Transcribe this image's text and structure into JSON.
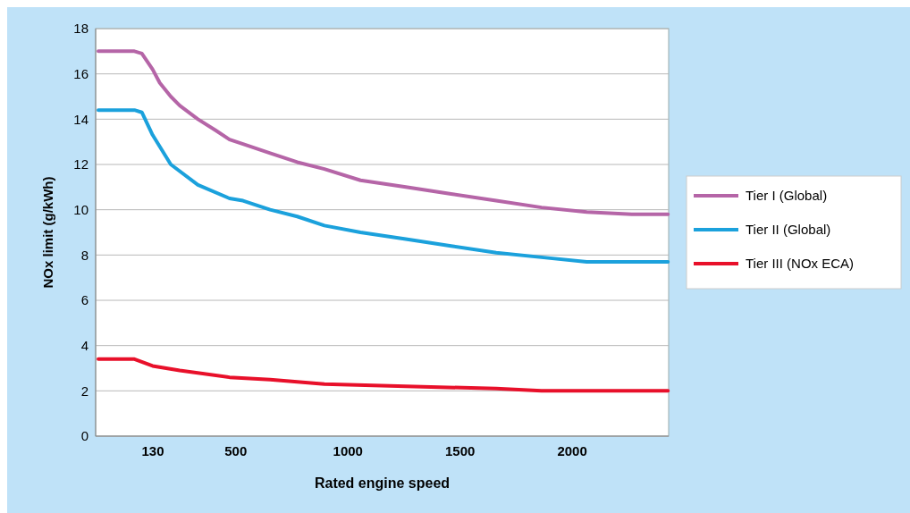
{
  "chart_data": {
    "type": "line",
    "xlabel": "Rated engine speed",
    "ylabel": "NOx limit (g/kWh)",
    "xlim": [
      -125,
      2430
    ],
    "xticks": [
      130,
      500,
      1000,
      1500,
      2000
    ],
    "ylim": [
      0,
      18
    ],
    "yticks": [
      0,
      2,
      4,
      6,
      8,
      10,
      12,
      14,
      16,
      18
    ],
    "grid": "y",
    "legend": "right",
    "marker": "none",
    "line_style": "solid",
    "series": [
      {
        "name": "Tier I (Global)",
        "color": "#b565a7",
        "x": [
          -113,
          48,
          81,
          129,
          161,
          210,
          250,
          331,
          411,
          472,
          532,
          653,
          774,
          895,
          1056,
          1258,
          1460,
          1661,
          1863,
          2065,
          2266,
          2427
        ],
        "values": [
          17,
          17,
          16.9,
          16.2,
          15.6,
          15,
          14.6,
          14,
          13.5,
          13.1,
          12.9,
          12.5,
          12.1,
          11.8,
          11.3,
          11,
          10.7,
          10.4,
          10.1,
          9.9,
          9.8,
          9.8
        ]
      },
      {
        "name": "Tier II (Global)",
        "color": "#1ba1dc",
        "x": [
          -113,
          48,
          81,
          129,
          210,
          331,
          472,
          532,
          653,
          774,
          895,
          1056,
          1258,
          1460,
          1661,
          1863,
          2065,
          2186,
          2427
        ],
        "values": [
          14.4,
          14.4,
          14.3,
          13.3,
          12,
          11.1,
          10.5,
          10.4,
          10,
          9.7,
          9.3,
          9,
          8.7,
          8.4,
          8.1,
          7.9,
          7.7,
          7.7,
          7.7
        ]
      },
      {
        "name": "Tier III (NOx ECA)",
        "color": "#e8102a",
        "x": [
          -113,
          48,
          129,
          250,
          472,
          653,
          895,
          1258,
          1661,
          1863,
          2427
        ],
        "values": [
          3.4,
          3.4,
          3.1,
          2.9,
          2.6,
          2.5,
          2.3,
          2.2,
          2.1,
          2,
          2
        ]
      }
    ]
  }
}
